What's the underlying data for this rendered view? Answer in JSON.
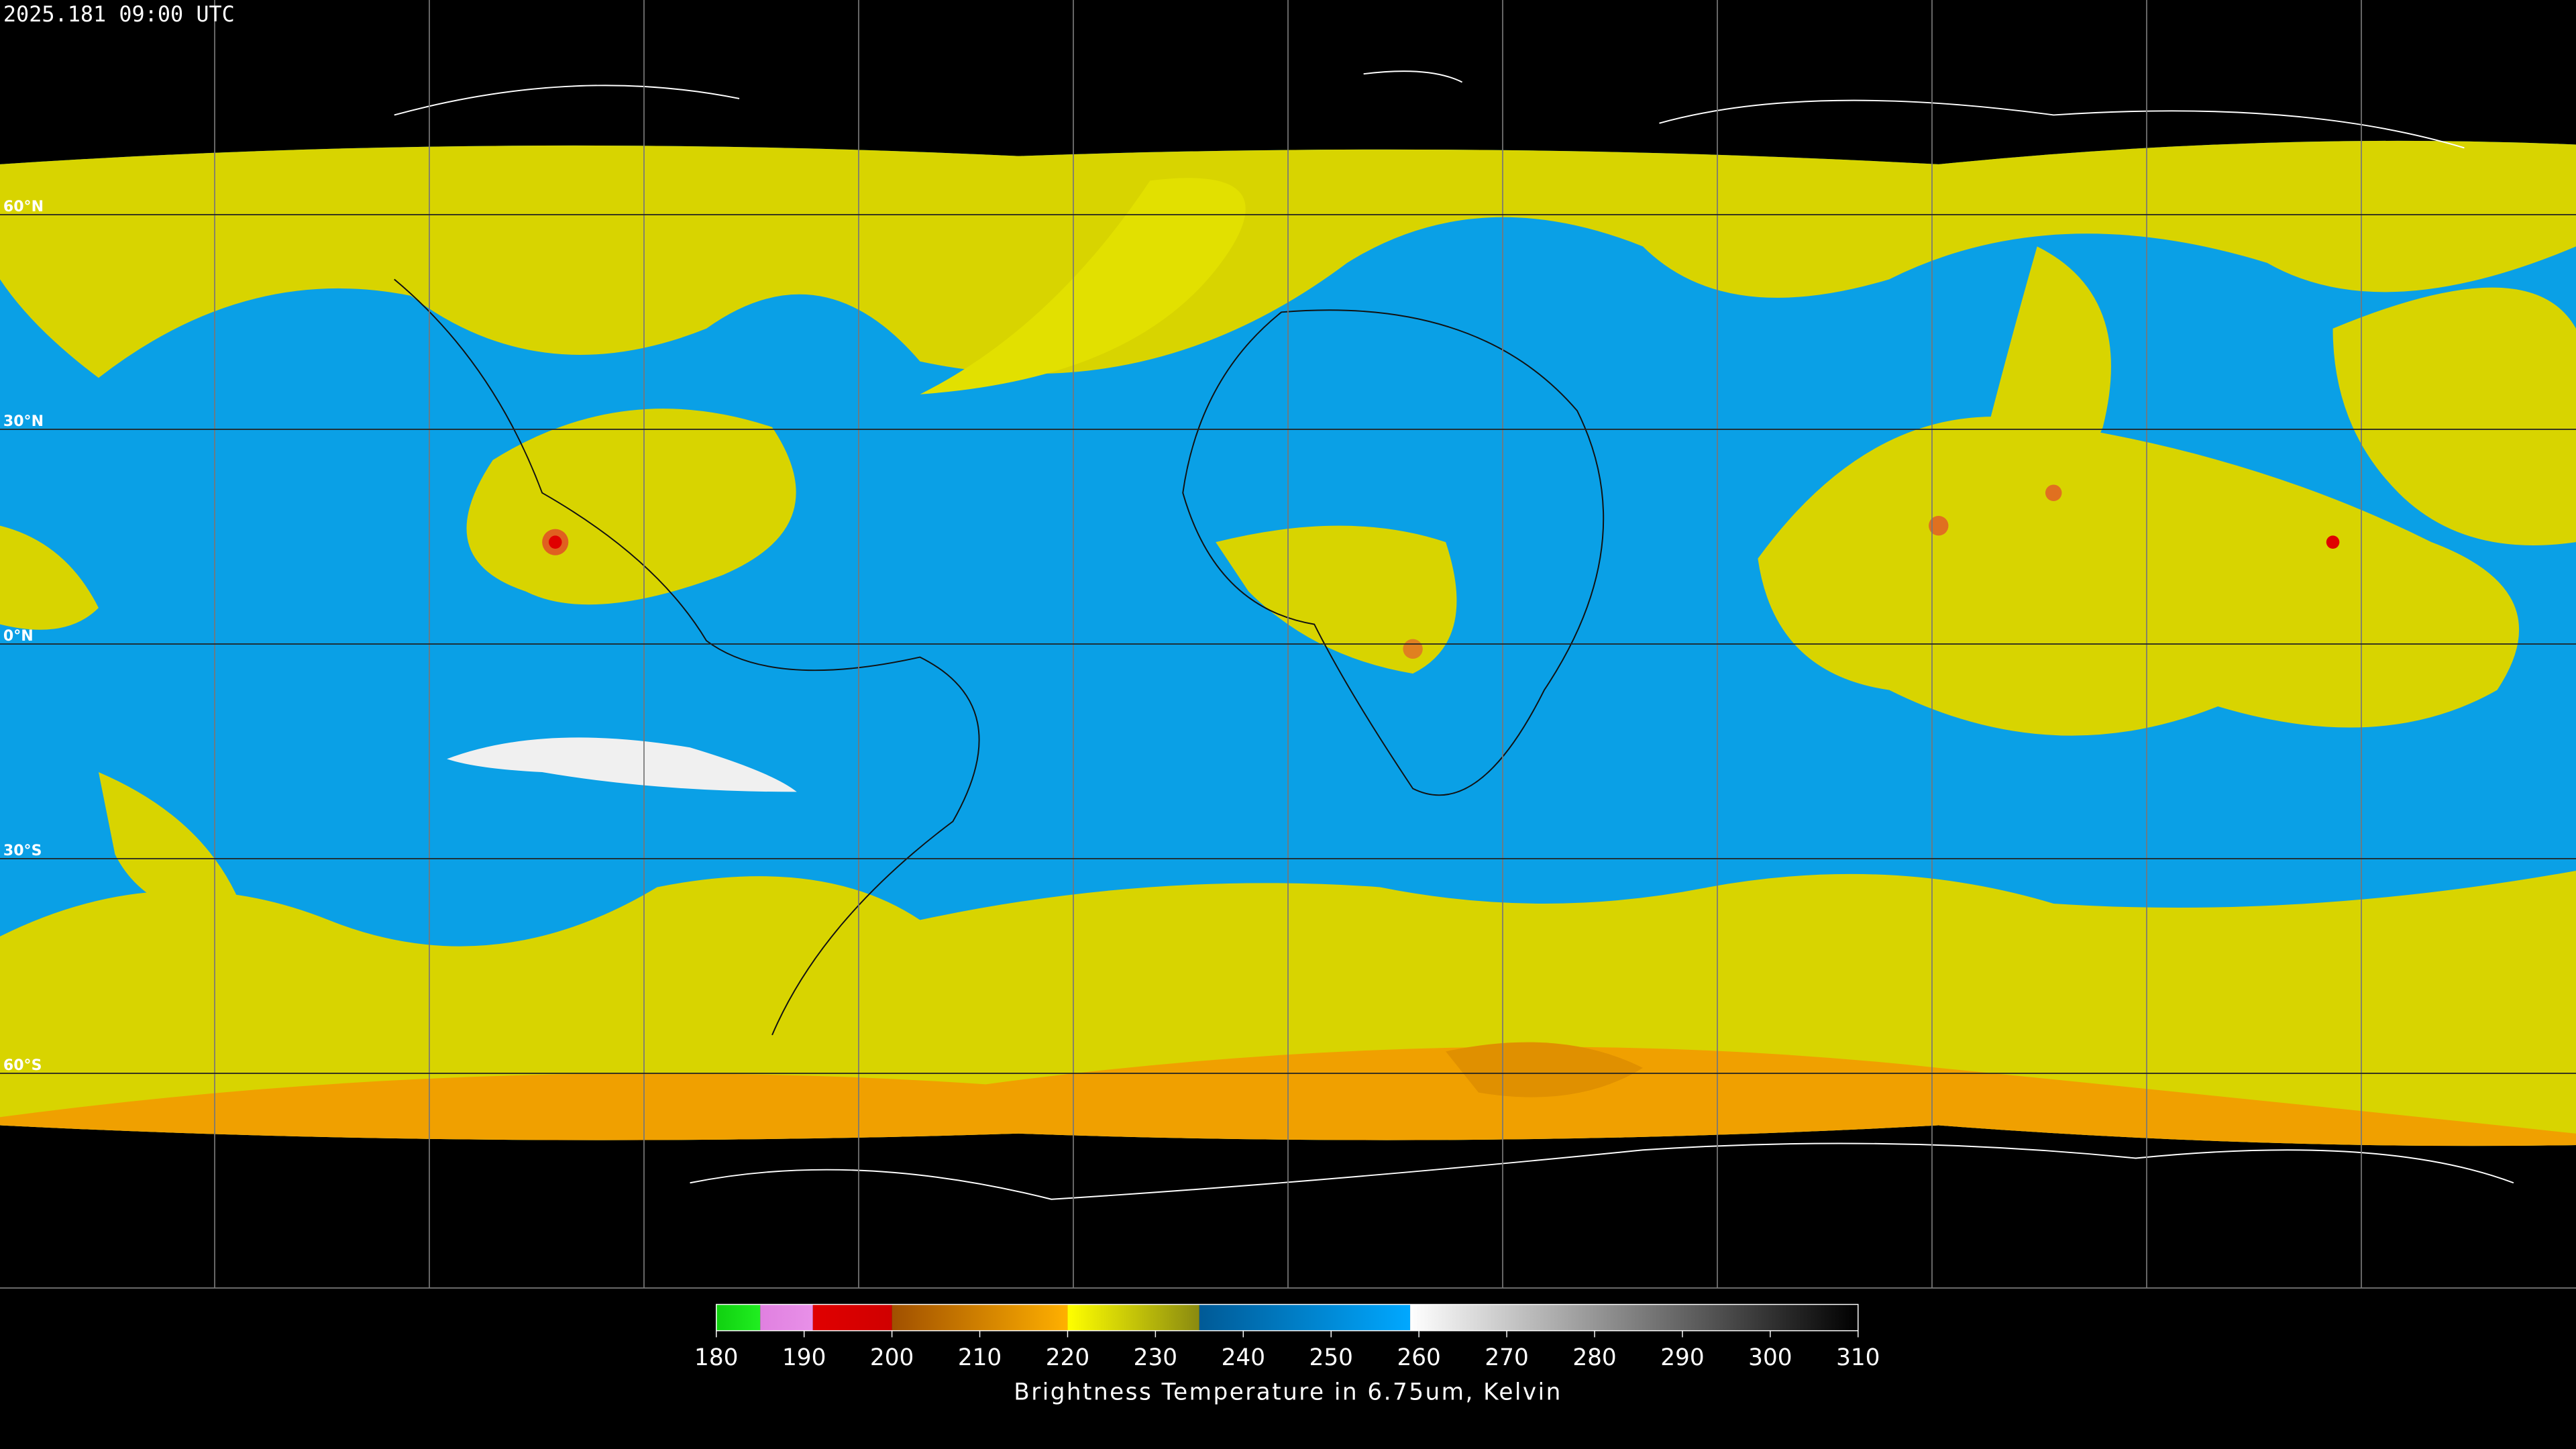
{
  "header": {
    "timestamp": "2025.181 09:00 UTC"
  },
  "map": {
    "lat_labels": [
      {
        "value": 60,
        "label": "60°N"
      },
      {
        "value": 30,
        "label": "30°N"
      },
      {
        "value": 0,
        "label": "0°N"
      },
      {
        "value": -30,
        "label": "30°S"
      },
      {
        "value": -60,
        "label": "60°S"
      }
    ]
  },
  "colorbar": {
    "title": "Brightness Temperature in 6.75um, Kelvin",
    "lim": [
      180,
      310
    ],
    "ticks": [
      180,
      190,
      200,
      210,
      220,
      230,
      240,
      250,
      260,
      270,
      280,
      290,
      300,
      310
    ],
    "segments": [
      {
        "from": 180,
        "to": 185,
        "colors": [
          "#10d010",
          "#20ee20"
        ]
      },
      {
        "from": 185,
        "to": 191,
        "colors": [
          "#e080e0",
          "#e890e8"
        ]
      },
      {
        "from": 191,
        "to": 200,
        "colors": [
          "#e00000",
          "#d00000"
        ]
      },
      {
        "from": 200,
        "to": 220,
        "colors": [
          "#a05000",
          "#ffb000"
        ]
      },
      {
        "from": 220,
        "to": 235,
        "colors": [
          "#ffff00",
          "#8a8a10"
        ]
      },
      {
        "from": 235,
        "to": 259,
        "colors": [
          "#005a96",
          "#00a8ff"
        ]
      },
      {
        "from": 259,
        "to": 310,
        "colors": [
          "#ffffff",
          "#000000"
        ]
      }
    ]
  }
}
